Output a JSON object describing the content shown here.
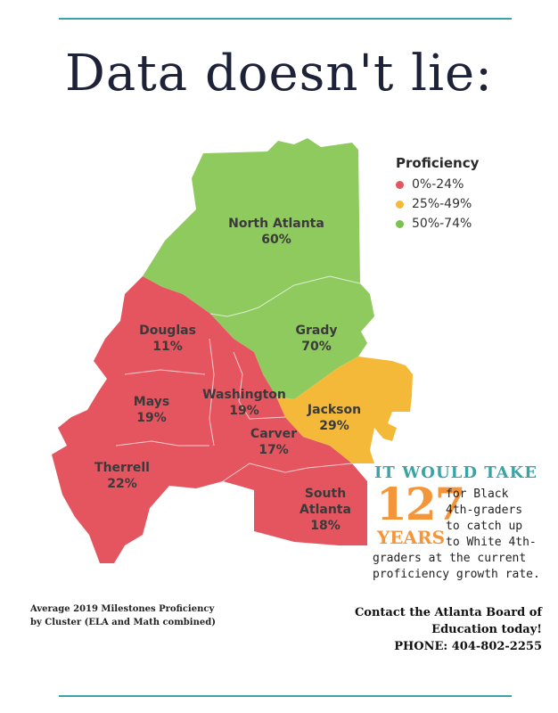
{
  "headline": "Data doesn't lie:",
  "legend": {
    "title": "Proficiency",
    "items": [
      {
        "label": "0%-24%",
        "color": "#e55560"
      },
      {
        "label": "25%-49%",
        "color": "#f5b93a"
      },
      {
        "label": "50%-74%",
        "color": "#7cc04d"
      }
    ]
  },
  "regions": [
    {
      "name": "North Atlanta",
      "value": "60%",
      "color": "#8fca5e"
    },
    {
      "name": "Grady",
      "value": "70%",
      "color": "#8fca5e"
    },
    {
      "name": "Douglas",
      "value": "11%",
      "color": "#e55560"
    },
    {
      "name": "Mays",
      "value": "19%",
      "color": "#e55560"
    },
    {
      "name": "Washington",
      "value": "19%",
      "color": "#e55560"
    },
    {
      "name": "Jackson",
      "value": "29%",
      "color": "#f5b93a"
    },
    {
      "name": "Carver",
      "value": "17%",
      "color": "#e55560"
    },
    {
      "name": "Therrell",
      "value": "22%",
      "color": "#e55560"
    },
    {
      "name": "South Atlanta",
      "value": "18%",
      "color": "#e55560"
    }
  ],
  "callout": {
    "heading": "IT WOULD TAKE",
    "number": "127",
    "unit": "YEARS",
    "side_text": "for Black\n4th-graders\nto catch up\nto White 4th-",
    "rest_text": "graders at the current\nproficiency growth rate."
  },
  "caption": "Average 2019 Milestones Proficiency\nby Cluster (ELA and Math combined)",
  "contact": {
    "line1": "Contact the Atlanta Board of",
    "line2": "Education today!",
    "phone": "PHONE: 404-802-2255"
  }
}
